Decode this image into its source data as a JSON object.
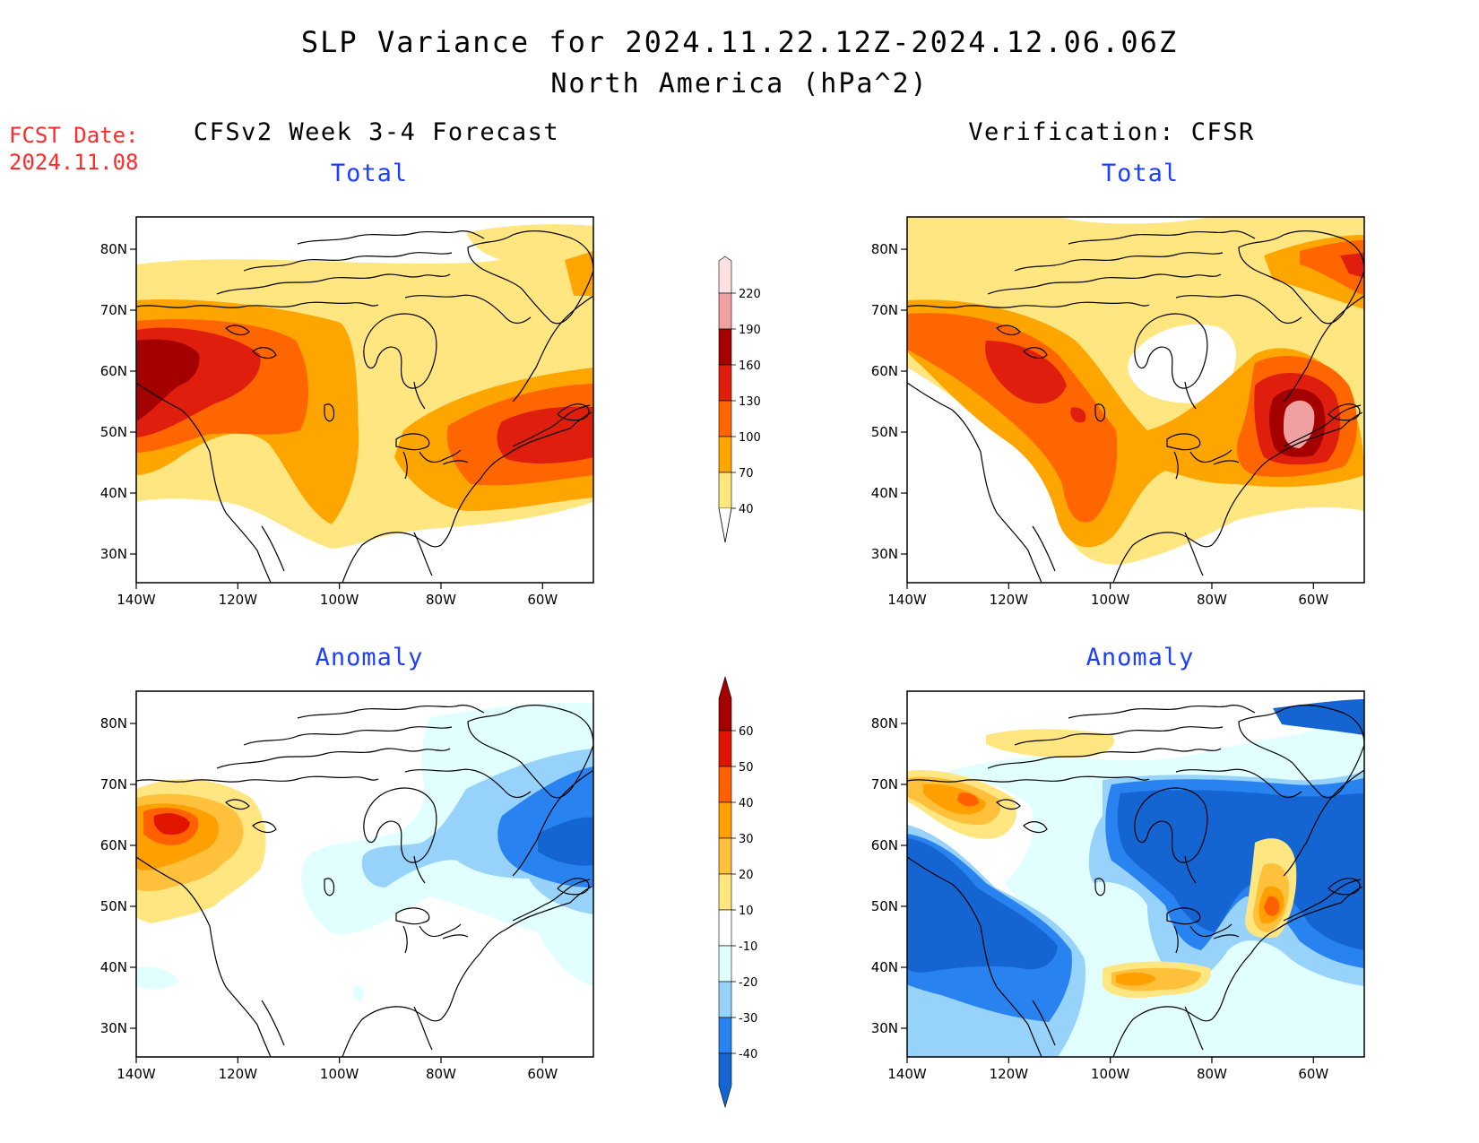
{
  "header": {
    "title": "SLP Variance for 2024.11.22.12Z-2024.12.06.06Z",
    "subtitle": "North America (hPa^2)",
    "fcst_label": "FCST Date:",
    "fcst_date": "2024.11.08"
  },
  "columns": {
    "left": "CFSv2 Week 3-4 Forecast",
    "right": "Verification: CFSR"
  },
  "panels": [
    {
      "id": "fcst-total",
      "title": "Total"
    },
    {
      "id": "verif-total",
      "title": "Total"
    },
    {
      "id": "fcst-anomaly",
      "title": "Anomaly"
    },
    {
      "id": "verif-anomaly",
      "title": "Anomaly"
    }
  ],
  "axes": {
    "lon_labels": [
      "140W",
      "120W",
      "100W",
      "80W",
      "60W"
    ],
    "lat_labels": [
      "80N",
      "70N",
      "60N",
      "50N",
      "40N",
      "30N"
    ]
  },
  "colorbars": {
    "total": {
      "levels": [
        "40",
        "70",
        "100",
        "130",
        "160",
        "190",
        "220"
      ],
      "colors": [
        "#ffe680",
        "#ffa500",
        "#ff6600",
        "#e01e0e",
        "#a50000",
        "#f0a0a0",
        "#ffe1e1"
      ]
    },
    "anomaly": {
      "levels": [
        "-40",
        "-30",
        "-20",
        "-10",
        "10",
        "20",
        "30",
        "40",
        "50",
        "60"
      ],
      "colors": [
        "#1464d2",
        "#2882f0",
        "#96d2fa",
        "#e1ffff",
        "#ffffff",
        "#ffe680",
        "#ffc03c",
        "#ffa000",
        "#ff6000",
        "#e11400",
        "#a50000"
      ]
    }
  }
}
